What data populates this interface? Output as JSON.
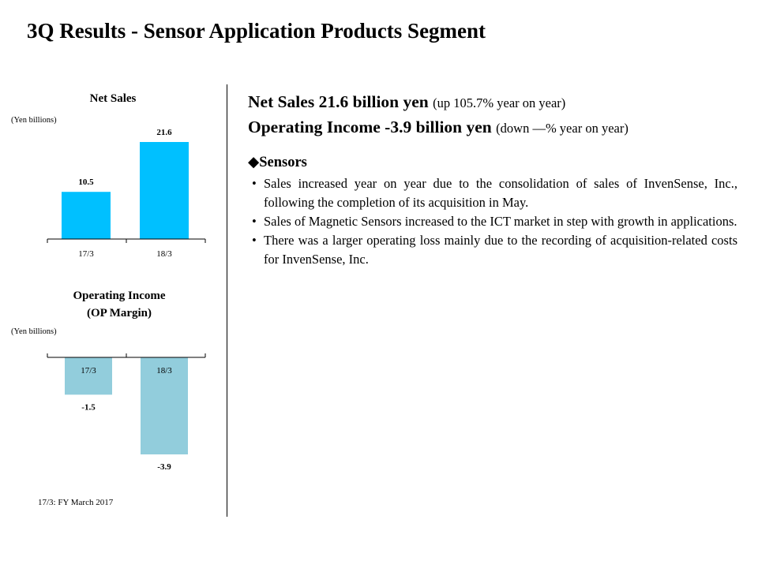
{
  "page": {
    "title": "3Q Results - Sensor Application Products Segment",
    "footnote": "17/3:  FY March 2017"
  },
  "charts": {
    "net_sales": {
      "title_line1": "Net Sales",
      "unit": "(Yen billions)"
    },
    "operating_income": {
      "title_line1": "Operating Income",
      "title_line2": "(OP Margin)",
      "unit": "(Yen billions)"
    }
  },
  "colors": {
    "net_sales_bar": "#00c0ff",
    "operating_income_bar": "#92cddc"
  },
  "chart_data": [
    {
      "type": "bar",
      "title": "Net Sales",
      "ylabel": "(Yen billions)",
      "categories": [
        "17/3",
        "18/3"
      ],
      "values": [
        10.5,
        21.6
      ],
      "data_labels": [
        "10.5",
        "21.6"
      ],
      "ylim": [
        0,
        21.6
      ],
      "grid": false,
      "legend": "none"
    },
    {
      "type": "bar",
      "title": "Operating Income (OP Margin)",
      "ylabel": "(Yen billions)",
      "categories": [
        "17/3",
        "18/3"
      ],
      "values": [
        -1.5,
        -3.9
      ],
      "data_labels": [
        "-1.5",
        "-3.9"
      ],
      "ylim": [
        -3.9,
        0
      ],
      "grid": false,
      "legend": "none"
    }
  ],
  "summary": {
    "net_sales_bold": "Net Sales 21.6 billion yen",
    "net_sales_note": "(up 105.7% year on year)",
    "op_income_bold": "Operating Income -3.9 billion yen",
    "op_income_note": "(down —% year on year)",
    "section_title": "◆Sensors",
    "bullet_char": "•",
    "bullets": [
      "Sales increased year on year due to the consolidation of sales of InvenSense, Inc., following the completion of its acquisition in May.",
      "Sales of Magnetic Sensors increased to the ICT market in step with growth in applications.",
      "There was a larger operating loss mainly due to the recording of acquisition-related costs for InvenSense, Inc."
    ]
  }
}
